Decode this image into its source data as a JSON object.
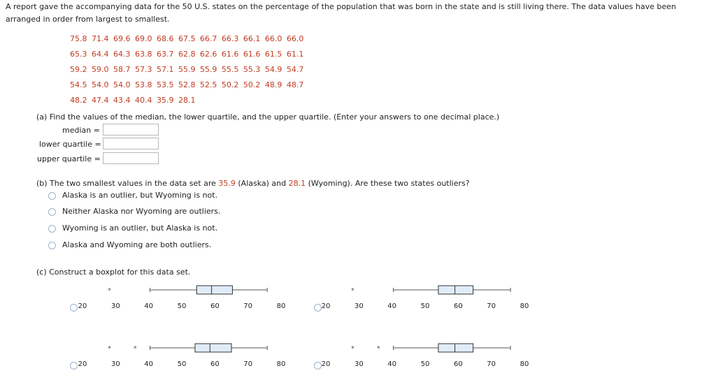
{
  "intro": "A report gave the accompanying data for the 50 U.S. states on the percentage of the population that was born in the state and is still living there. The data values have been arranged in order from largest to smallest.",
  "data_rows": [
    "75.8 71.4 69.6 69.0 68.6 67.5 66.7 66.3 66.1 66.0 66.0",
    "65.3 64.4 64.3 63.8 63.7 62.8 62.6 61.6 61.6 61.5 61.1",
    "59.2 59.0 58.7 57.3 57.1 55.9 55.9 55.5 55.3 54.9 54.7",
    "54.5 54.0 54.0 53.8 53.5 52.8 52.5 50.2 50.2 48.9 48.7",
    "48.2 47.4 43.4 40.4 35.9 28.1"
  ],
  "part_a": {
    "question": "(a) Find the values of the median, the lower quartile, and the upper quartile. (Enter your answers to one decimal place.)",
    "median_label": "median =",
    "lower_label": "lower quartile =",
    "upper_label": "upper quartile =",
    "median_value": "",
    "lower_value": "",
    "upper_value": ""
  },
  "part_b": {
    "q_pre": "(b) The two smallest values in the data set are ",
    "v1": "35.9",
    "q_mid1": " (Alaska) and ",
    "v2": "28.1",
    "q_mid2": " (Wyoming). Are these two states outliers?",
    "options": [
      "Alaska is an outlier, but Wyoming is not.",
      "Neither Alaska nor Wyoming are outliers.",
      "Wyoming is an outlier, but Alaska is not.",
      "Alaska and Wyoming are both outliers."
    ]
  },
  "part_c": {
    "question": "(c) Construct a boxplot for this data set."
  },
  "chart_data": [
    {
      "type": "boxplot",
      "xlim": [
        20,
        80
      ],
      "ticks": [
        "20",
        "30",
        "40",
        "50",
        "60",
        "70",
        "80"
      ],
      "outliers": [
        28.1
      ],
      "whisker_low": 40.4,
      "q1": 54.5,
      "median": 59.0,
      "q3": 65.3,
      "whisker_high": 75.8
    },
    {
      "type": "boxplot",
      "xlim": [
        20,
        80
      ],
      "ticks": [
        "20",
        "30",
        "40",
        "50",
        "60",
        "70",
        "80"
      ],
      "outliers": [
        28.1
      ],
      "whisker_low": 40.4,
      "q1": 54.0,
      "median": 59.0,
      "q3": 64.5,
      "whisker_high": 75.8
    },
    {
      "type": "boxplot",
      "xlim": [
        20,
        80
      ],
      "ticks": [
        "20",
        "30",
        "40",
        "50",
        "60",
        "70",
        "80"
      ],
      "outliers": [
        28.1,
        35.9
      ],
      "whisker_low": 40.4,
      "q1": 54.0,
      "median": 58.5,
      "q3": 65.0,
      "whisker_high": 75.8
    },
    {
      "type": "boxplot",
      "xlim": [
        20,
        80
      ],
      "ticks": [
        "20",
        "30",
        "40",
        "50",
        "60",
        "70",
        "80"
      ],
      "outliers": [
        28.1,
        35.9
      ],
      "whisker_low": 40.4,
      "q1": 54.0,
      "median": 59.0,
      "q3": 64.5,
      "whisker_high": 75.8
    }
  ]
}
